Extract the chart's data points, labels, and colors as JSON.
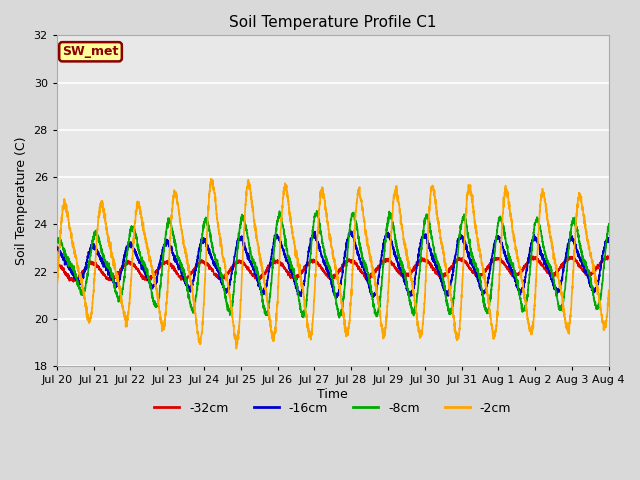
{
  "title": "Soil Temperature Profile C1",
  "xlabel": "Time",
  "ylabel": "Soil Temperature (C)",
  "ylim": [
    18,
    32
  ],
  "xlim": [
    0,
    15
  ],
  "fig_bg": "#d9d9d9",
  "plot_bg": "#e8e8e8",
  "annotation": "SW_met",
  "annotation_bg": "#ffff99",
  "annotation_border": "#8b0000",
  "xtick_labels": [
    "Jul 20",
    "Jul 21",
    "Jul 22",
    "Jul 23",
    "Jul 24",
    "Jul 25",
    "Jul 26",
    "Jul 27",
    "Jul 28",
    "Jul 29",
    "Jul 30",
    "Jul 31",
    "Aug 1",
    "Aug 2",
    "Aug 3",
    "Aug 4"
  ],
  "colors": {
    "-32cm": "#dd0000",
    "-16cm": "#0000cc",
    "-8cm": "#00aa00",
    "-2cm": "#ffa500"
  },
  "legend_labels": [
    "-32cm",
    "-16cm",
    "-8cm",
    "-2cm"
  ],
  "legend_colors": [
    "#dd0000",
    "#0000cc",
    "#00aa00",
    "#ffa500"
  ],
  "linewidth": 1.2
}
